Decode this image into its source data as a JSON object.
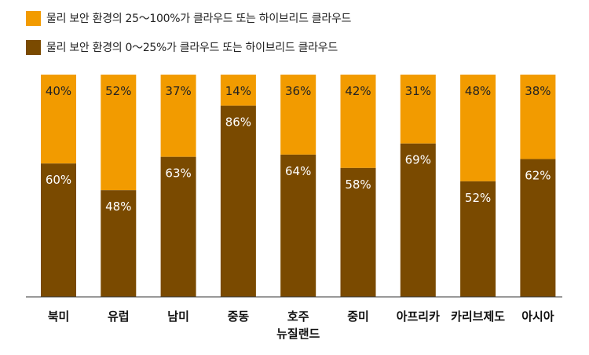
{
  "legend": {
    "top_series": "물리 보안 환경의 25～100%가 클라우드 또는 하이브리드 클라우드",
    "bottom_series": "물리 보안 환경의 0～25%가 클라우드 또는 하이브리드 클라우드"
  },
  "colors": {
    "top": "#F29B00",
    "bottom": "#7A4A00",
    "top_label_text": "#222222",
    "bottom_label_text": "#ffffff",
    "axis": "#333333"
  },
  "chart_data": {
    "type": "bar",
    "stacked": true,
    "categories": [
      [
        "북미"
      ],
      [
        "유럽"
      ],
      [
        "남미"
      ],
      [
        "중동"
      ],
      [
        "호주",
        "뉴질랜드"
      ],
      [
        "중미"
      ],
      [
        "아프리카"
      ],
      [
        "카리브제도"
      ],
      [
        "아시아"
      ]
    ],
    "series": [
      {
        "name": "물리 보안 환경의 0～25%가 클라우드 또는 하이브리드 클라우드",
        "values": [
          60,
          48,
          63,
          86,
          64,
          58,
          69,
          52,
          62
        ]
      },
      {
        "name": "물리 보안 환경의 25～100%가 클라우드 또는 하이브리드 클라우드",
        "values": [
          40,
          52,
          37,
          14,
          36,
          42,
          31,
          48,
          38
        ]
      }
    ],
    "value_suffix": "%",
    "ylim": [
      0,
      100
    ],
    "grid": false,
    "legend_position": "top-left"
  }
}
